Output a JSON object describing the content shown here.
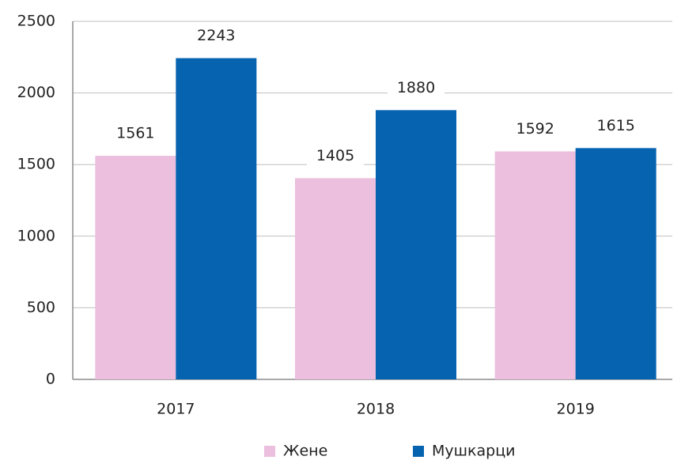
{
  "chart_data": {
    "type": "bar",
    "categories": [
      "2017",
      "2018",
      "2019"
    ],
    "series": [
      {
        "name": "Жене",
        "color": "#ebbfdd",
        "values": [
          1561,
          1405,
          1592
        ]
      },
      {
        "name": "Мушкарци",
        "color": "#0563b0",
        "values": [
          2243,
          1880,
          1615
        ]
      }
    ],
    "ylim": [
      0,
      2500
    ],
    "yticks": [
      0,
      500,
      1000,
      1500,
      2000,
      2500
    ],
    "grid": true,
    "legend": "bottom"
  }
}
